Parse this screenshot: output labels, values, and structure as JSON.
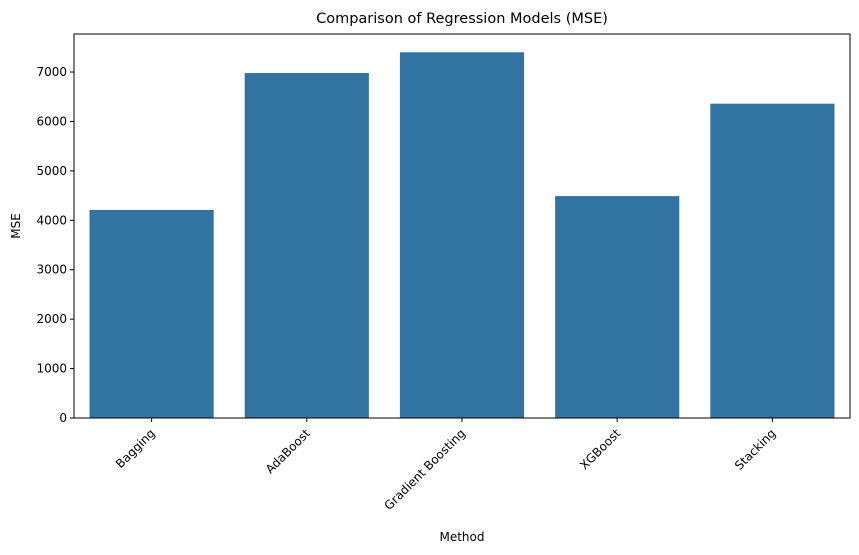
{
  "chart_data": {
    "type": "bar",
    "title": "Comparison of Regression Models (MSE)",
    "xlabel": "Method",
    "ylabel": "MSE",
    "categories": [
      "Bagging",
      "AdaBoost",
      "Gradient Boosting",
      "XGBoost",
      "Stacking"
    ],
    "values": [
      4210,
      6980,
      7400,
      4490,
      6360
    ],
    "ylim": [
      0,
      7770
    ],
    "yticks": [
      0,
      1000,
      2000,
      3000,
      4000,
      5000,
      6000,
      7000
    ],
    "ytick_labels": [
      "0",
      "1000",
      "2000",
      "3000",
      "4000",
      "5000",
      "6000",
      "7000"
    ],
    "xtick_rotation_deg": 45,
    "grid": false,
    "bar_color": "#3274a1"
  }
}
